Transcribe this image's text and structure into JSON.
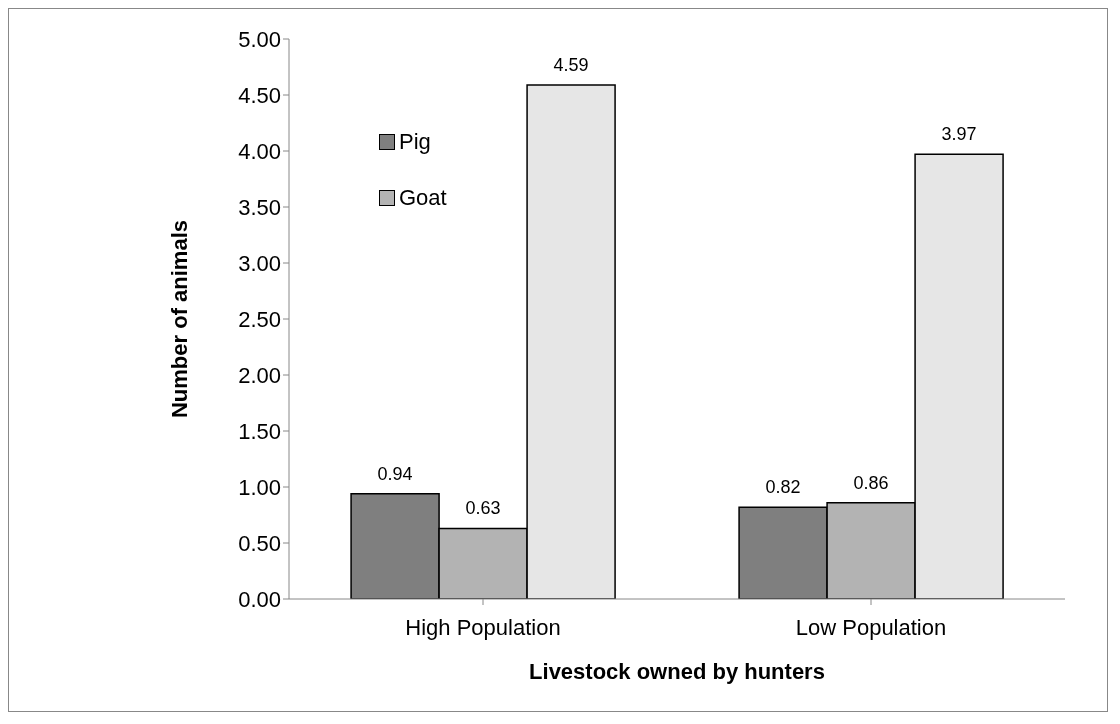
{
  "chart_data": {
    "type": "bar",
    "xlabel": "Livestock owned by hunters",
    "ylabel": "Number of animals",
    "categories": [
      "High Population",
      "Low Population"
    ],
    "series": [
      {
        "name": "Pig",
        "color": "#7f7f7f",
        "values": [
          0.94,
          0.82
        ]
      },
      {
        "name": "Goat",
        "color": "#b3b3b3",
        "values": [
          0.63,
          0.86
        ]
      },
      {
        "color": "#e6e6e6",
        "values": [
          4.59,
          3.97
        ]
      }
    ],
    "ylim": [
      0,
      5
    ],
    "yticks": [
      {
        "value": 0,
        "label": "0.00"
      },
      {
        "value": 0.5,
        "label": "0.50"
      },
      {
        "value": 1,
        "label": "1.00"
      },
      {
        "value": 1.5,
        "label": "1.50"
      },
      {
        "value": 2,
        "label": "2.00"
      },
      {
        "value": 2.5,
        "label": "2.50"
      },
      {
        "value": 3,
        "label": "3.00"
      },
      {
        "value": 3.5,
        "label": "3.50"
      },
      {
        "value": 4,
        "label": "4.00"
      },
      {
        "value": 4.5,
        "label": "4.50"
      },
      {
        "value": 5,
        "label": "5.00"
      }
    ],
    "data_labels": true,
    "legend": "top left",
    "grid": false
  }
}
